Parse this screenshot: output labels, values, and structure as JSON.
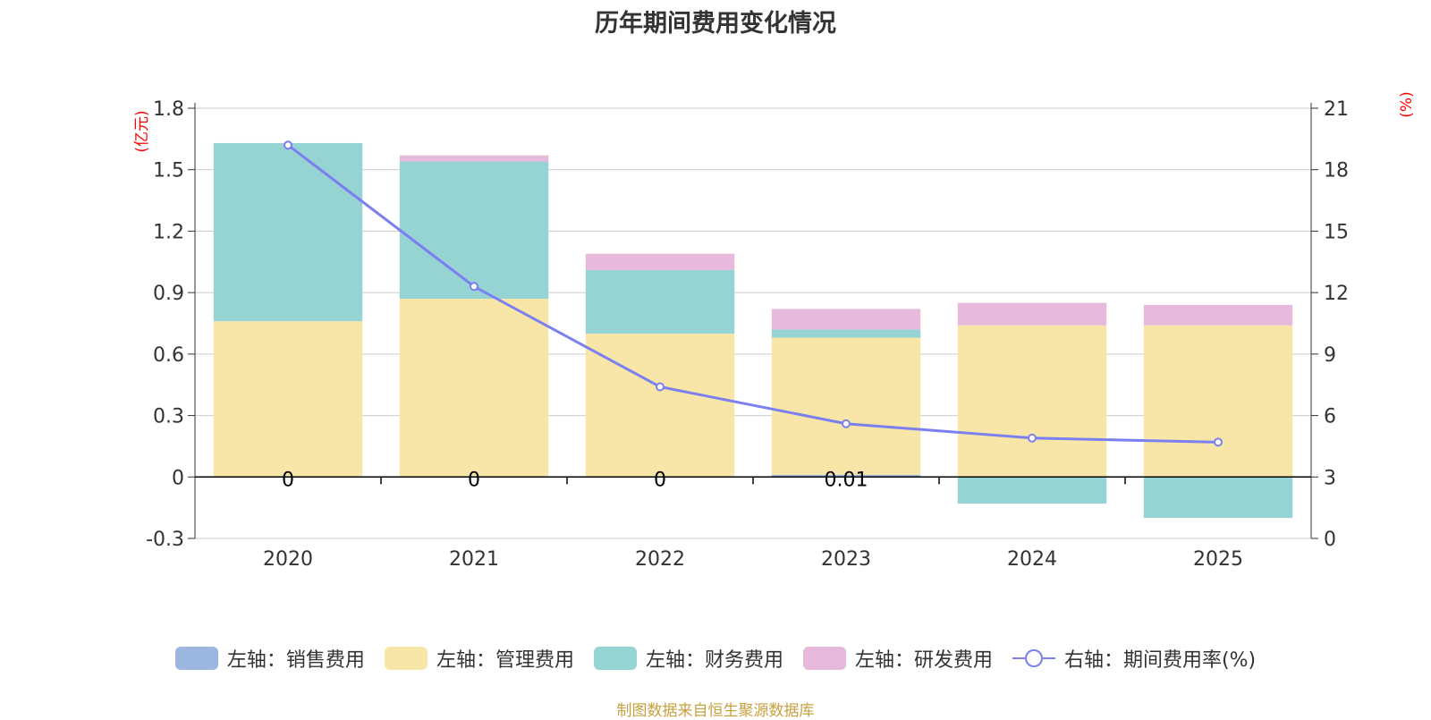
{
  "title": "历年期间费用变化情况",
  "source_note": "制图数据来自恒生聚源数据库",
  "colors": {
    "sales": "#9bb7e0",
    "management": "#f8e6a8",
    "finance": "#96d3d3",
    "rnd": "#e7b9da",
    "rate_line": "#7b7ff0",
    "axis_unit": "#ff0000",
    "grid": "#cccccc",
    "axis": "#333333"
  },
  "chart_data": {
    "type": "bar",
    "stacked": true,
    "categories": [
      "2020",
      "2021",
      "2022",
      "2023",
      "2024",
      "2025"
    ],
    "series": [
      {
        "name": "左轴：销售费用",
        "key": "sales",
        "axis": "left",
        "values": [
          0,
          0,
          0,
          0.01,
          0,
          0
        ]
      },
      {
        "name": "左轴：管理费用",
        "key": "management",
        "axis": "left",
        "values": [
          0.76,
          0.87,
          0.7,
          0.67,
          0.74,
          0.74
        ]
      },
      {
        "name": "左轴：财务费用",
        "key": "finance",
        "axis": "left",
        "values": [
          0.87,
          0.67,
          0.31,
          0.04,
          -0.13,
          -0.2
        ]
      },
      {
        "name": "左轴：研发费用",
        "key": "rnd",
        "axis": "left",
        "values": [
          0,
          0.03,
          0.08,
          0.1,
          0.11,
          0.1
        ]
      },
      {
        "name": "右轴：期间费用率(%)",
        "key": "rate_line",
        "axis": "right",
        "type": "line",
        "values": [
          19.2,
          12.3,
          7.4,
          5.6,
          4.9,
          4.7
        ]
      }
    ],
    "sales_labels": [
      "0",
      "0",
      "0",
      "0.01",
      "",
      ""
    ],
    "left_axis": {
      "unit": "(亿元)",
      "ylim": [
        -0.3,
        1.8
      ],
      "ticks": [
        "1.8",
        "1.5",
        "1.2",
        "0.9",
        "0.6",
        "0.3",
        "0",
        "-0.3"
      ]
    },
    "right_axis": {
      "unit": "(%)",
      "ylim": [
        0,
        21
      ],
      "ticks": [
        "21",
        "18",
        "15",
        "12",
        "9",
        "6",
        "3",
        "0"
      ]
    },
    "legend_position": "bottom"
  }
}
